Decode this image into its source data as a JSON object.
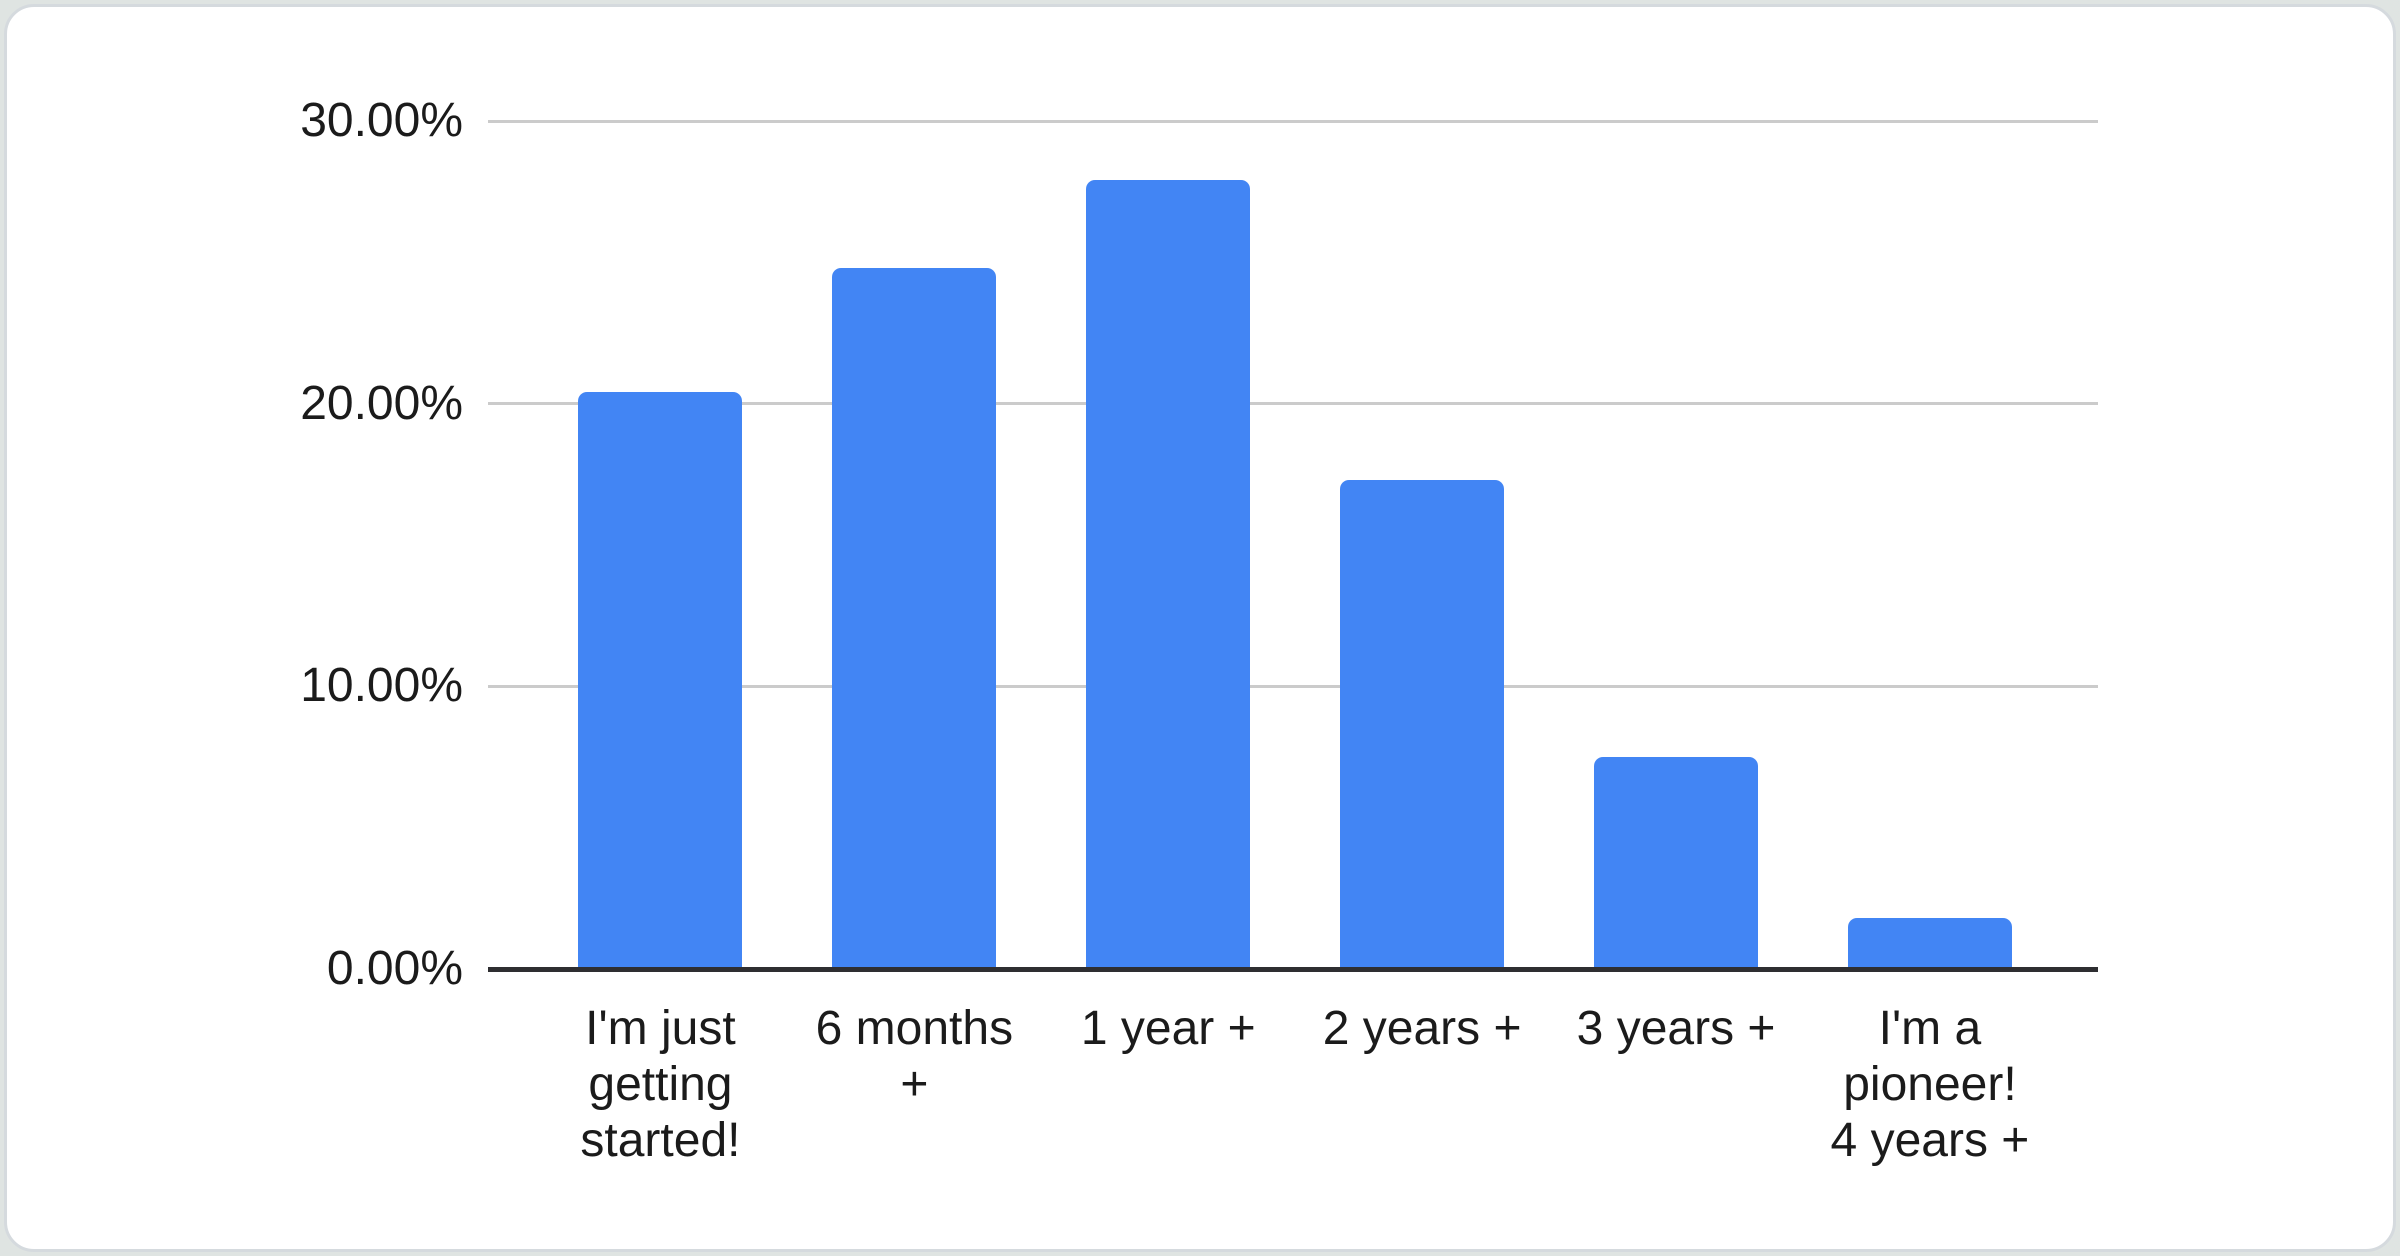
{
  "chart_data": {
    "type": "bar",
    "title": "",
    "xlabel": "",
    "ylabel": "",
    "legend_position": "none",
    "grid": true,
    "unit": "percent",
    "ylim": [
      0,
      30
    ],
    "categories": [
      "I'm just getting started!",
      "6 months +",
      "1 year +",
      "2 years +",
      "3 years +",
      "I'm a pioneer! 4 years +"
    ],
    "categories_wrapped": [
      "I'm just\ngetting\nstarted!",
      "6 months\n+",
      "1 year +",
      "2 years +",
      "3 years +",
      "I'm a\npioneer!\n4 years +"
    ],
    "values": [
      20.4,
      24.8,
      27.9,
      17.3,
      7.5,
      1.8
    ],
    "value_labels": [
      "20.40%",
      "24.80%",
      "27.90%",
      "17.30%",
      "7.50%",
      "1.80%"
    ],
    "yticks": [
      {
        "value": 30,
        "label": "30.00%"
      },
      {
        "value": 20,
        "label": "20.00%"
      },
      {
        "value": 10,
        "label": "10.00%"
      },
      {
        "value": 0,
        "label": "0.00%"
      }
    ]
  },
  "colors": {
    "bar": "#4285f4",
    "gridline": "#cbcbcb",
    "axis_baseline": "#2e2e31",
    "text": "#1b1b1b",
    "card_background": "#ffffff",
    "card_border": "#d5dade",
    "page_background": "#dfe4e2"
  }
}
